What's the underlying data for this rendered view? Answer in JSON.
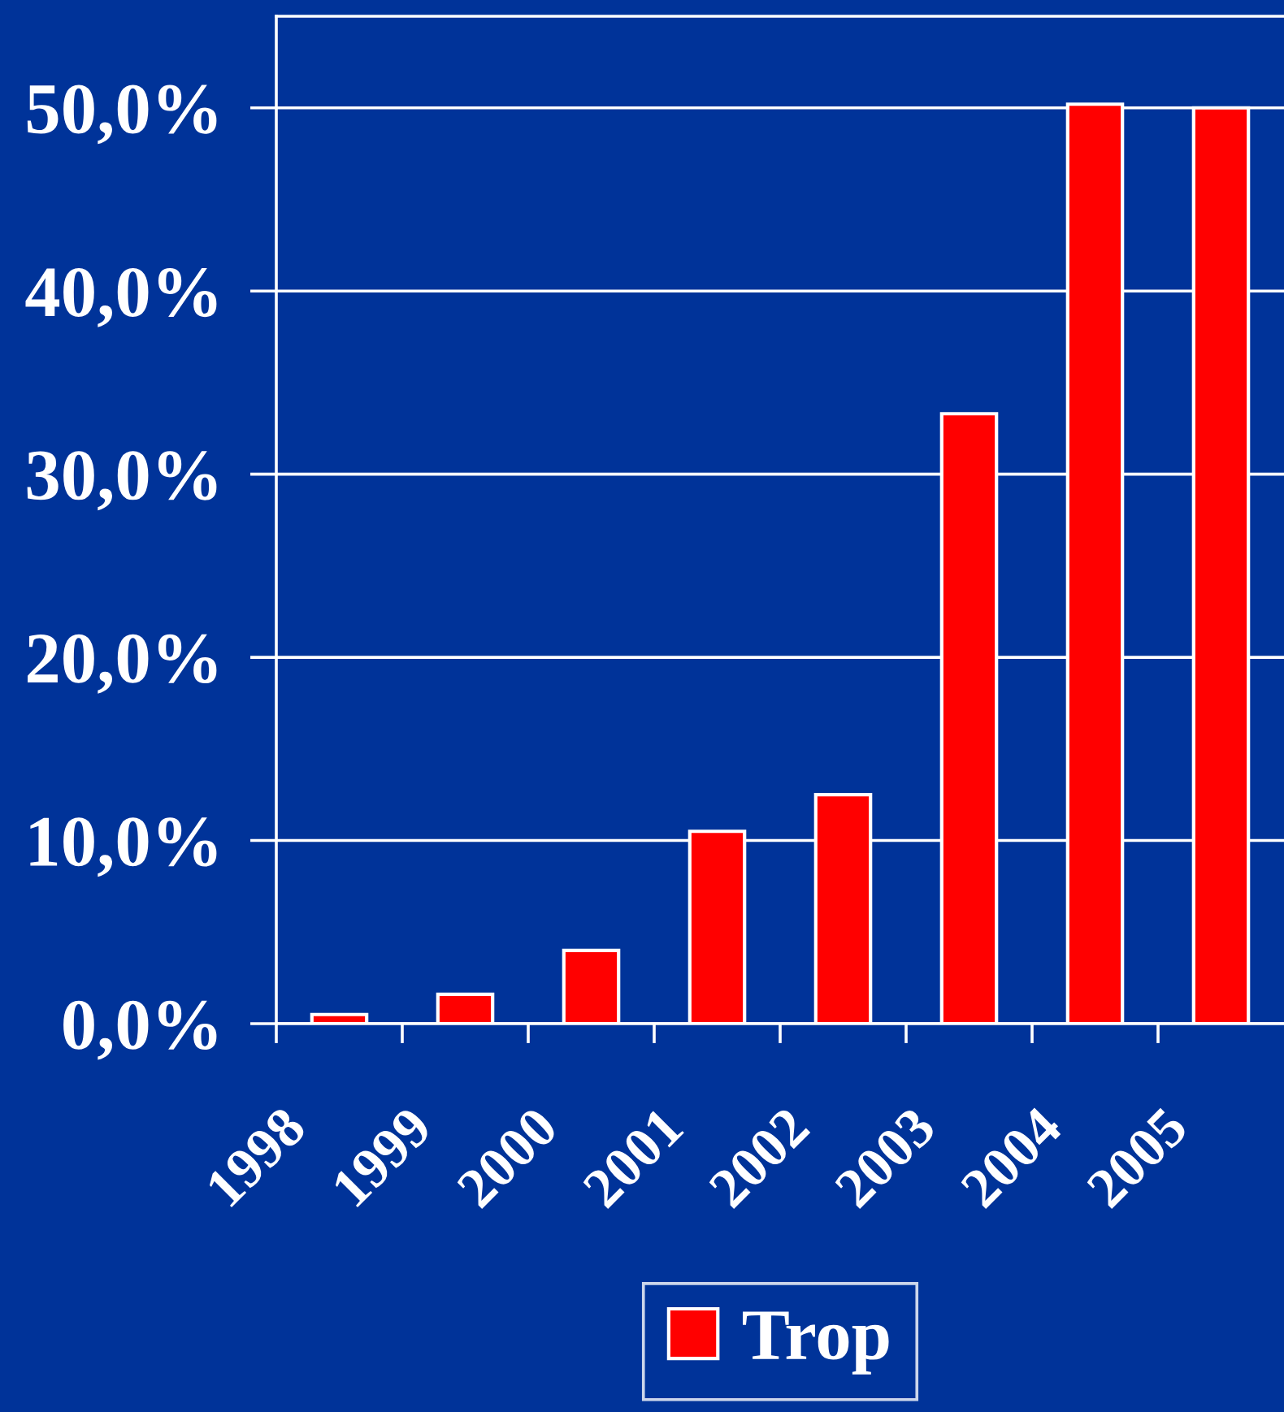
{
  "chart_data": {
    "type": "bar",
    "categories": [
      "1998",
      "1999",
      "2000",
      "2001",
      "2002",
      "2003",
      "2004",
      "2005"
    ],
    "series": [
      {
        "name": "Trop",
        "color": "#ff0000",
        "values": [
          0.5,
          1.6,
          4.0,
          10.5,
          12.5,
          33.3,
          50.2,
          50.0
        ]
      }
    ],
    "ylim": [
      0,
      55
    ],
    "yticks": [
      {
        "value": 0,
        "label": "0,0%"
      },
      {
        "value": 10,
        "label": "10,0%"
      },
      {
        "value": 20,
        "label": "20,0%"
      },
      {
        "value": 30,
        "label": "30,0%"
      },
      {
        "value": 40,
        "label": "40,0%"
      },
      {
        "value": 50,
        "label": "50,0%"
      }
    ],
    "grid": "y",
    "legend": "bottom"
  }
}
